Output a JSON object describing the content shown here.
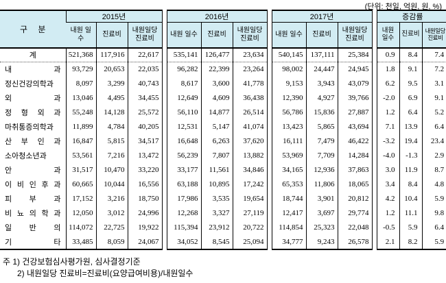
{
  "unit_note": "(단위: 천일, 억원, 원, %)",
  "table": {
    "corner_label": "구 분",
    "groups": [
      {
        "label": "2015년",
        "cols": [
          "내원 일수",
          "진료비",
          "내원일당 진료비"
        ]
      },
      {
        "label": "2016년",
        "cols": [
          "내원 일수",
          "진료비",
          "내원일당 진료비"
        ]
      },
      {
        "label": "2017년",
        "cols": [
          "내원 일수",
          "진료비",
          "내원일당 진료비"
        ]
      },
      {
        "label": "증감률",
        "cols": [
          "내원 일수",
          "진료비",
          "내원일당 진료비"
        ]
      }
    ],
    "rows": [
      {
        "label": "계",
        "is_total": true,
        "values": [
          "521,368",
          "117,916",
          "22,617",
          "535,141",
          "126,477",
          "23,634",
          "540,145",
          "137,111",
          "25,384",
          "0.9",
          "8.4",
          "7.4"
        ]
      },
      {
        "label": "내 과",
        "values": [
          "93,729",
          "20,653",
          "22,035",
          "96,282",
          "22,399",
          "23,264",
          "98,002",
          "24,447",
          "24,945",
          "1.8",
          "9.1",
          "7.2"
        ]
      },
      {
        "label": "정신건강의학과",
        "values": [
          "8,097",
          "3,299",
          "40,743",
          "8,617",
          "3,600",
          "41,778",
          "9,153",
          "3,943",
          "43,079",
          "6.2",
          "9.5",
          "3.1"
        ]
      },
      {
        "label": "외 과",
        "values": [
          "13,046",
          "4,495",
          "34,455",
          "12,649",
          "4,609",
          "36,438",
          "12,390",
          "4,927",
          "39,766",
          "-2.0",
          "6.9",
          "9.1"
        ]
      },
      {
        "label": "정 형 외 과",
        "values": [
          "55,248",
          "14,128",
          "25,572",
          "56,110",
          "14,877",
          "26,514",
          "56,786",
          "15,836",
          "27,887",
          "1.2",
          "6.4",
          "5.2"
        ]
      },
      {
        "label": "마취통증의학과",
        "values": [
          "11,899",
          "4,784",
          "40,205",
          "12,531",
          "5,147",
          "41,074",
          "13,423",
          "5,865",
          "43,694",
          "7.1",
          "13.9",
          "6.4"
        ]
      },
      {
        "label": "산 부 인 과",
        "values": [
          "16,847",
          "5,815",
          "34,517",
          "16,648",
          "6,263",
          "37,620",
          "16,111",
          "7,479",
          "46,422",
          "-3.2",
          "19.4",
          "23.4"
        ]
      },
      {
        "label": "소아청소년과",
        "values": [
          "53,561",
          "7,216",
          "13,472",
          "56,239",
          "7,807",
          "13,882",
          "53,969",
          "7,709",
          "14,284",
          "-4.0",
          "-1.3",
          "2.9"
        ]
      },
      {
        "label": "안 과",
        "values": [
          "31,517",
          "10,470",
          "33,220",
          "33,177",
          "11,561",
          "34,846",
          "34,165",
          "12,936",
          "37,863",
          "3.0",
          "11.9",
          "8.7"
        ]
      },
      {
        "label": "이 비 인 후 과",
        "values": [
          "60,665",
          "10,044",
          "16,556",
          "63,188",
          "10,895",
          "17,242",
          "65,353",
          "11,806",
          "18,065",
          "3.4",
          "8.4",
          "4.8"
        ]
      },
      {
        "label": "피 부 과",
        "values": [
          "17,152",
          "3,216",
          "18,750",
          "17,986",
          "3,535",
          "19,654",
          "18,744",
          "3,901",
          "20,812",
          "4.2",
          "10.4",
          "5.9"
        ]
      },
      {
        "label": "비 뇨 의 학 과",
        "values": [
          "12,050",
          "3,012",
          "24,996",
          "12,268",
          "3,327",
          "27,119",
          "12,417",
          "3,697",
          "29,774",
          "1.2",
          "11.1",
          "9.8"
        ]
      },
      {
        "label": "일 반 의",
        "values": [
          "114,072",
          "22,725",
          "19,922",
          "115,394",
          "23,912",
          "20,722",
          "114,854",
          "25,323",
          "22,048",
          "-0.5",
          "5.9",
          "6.4"
        ]
      },
      {
        "label": "기 타",
        "values": [
          "33,485",
          "8,059",
          "24,067",
          "34,052",
          "8,545",
          "25,094",
          "34,777",
          "9,243",
          "26,578",
          "2.1",
          "8.2",
          "5.9"
        ]
      }
    ]
  },
  "notes": {
    "line1": "주 1) 건강보험심사평가원, 심사결정기준",
    "line2": "2) 내원일당 진료비=진료비(요양급여비용)/내원일수"
  }
}
